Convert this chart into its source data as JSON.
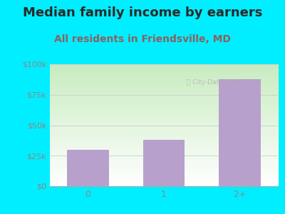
{
  "title": "Median family income by earners",
  "subtitle": "All residents in Friendsville, MD",
  "categories": [
    "0",
    "1",
    "2+"
  ],
  "values": [
    30000,
    38000,
    88000
  ],
  "bar_color": "#b8a0cc",
  "title_color": "#2a2a2a",
  "subtitle_color": "#8b6060",
  "background_color": "#00eeff",
  "plot_bg_color_top": "#c8ecc0",
  "plot_bg_color_bottom": "#ffffff",
  "yticks": [
    0,
    25000,
    50000,
    75000,
    100000
  ],
  "ytick_labels": [
    "$0",
    "$25k",
    "$50k",
    "$75k",
    "$100k"
  ],
  "ylim": [
    0,
    100000
  ],
  "title_fontsize": 13,
  "subtitle_fontsize": 10,
  "tick_color": "#888888",
  "grid_color": "#cccccc",
  "watermark": "City-Data.com"
}
